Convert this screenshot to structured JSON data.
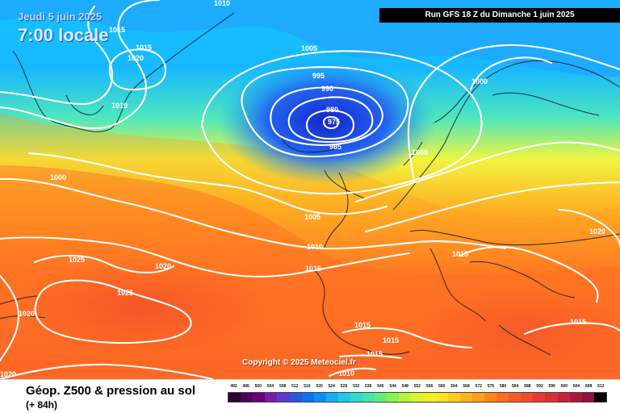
{
  "header": {
    "date_text": "Jeudi 5 juin 2025",
    "time_text": "7:00 locale",
    "run_text": "Run GFS 18 Z du Dimanche 1 juin 2025"
  },
  "map": {
    "copyright": "Copyright © 2025 Meteociel.fr",
    "isobar_labels": [
      "1010",
      "1015",
      "1015",
      "1020",
      "1010",
      "1005",
      "995",
      "990",
      "980",
      "975",
      "985",
      "1000",
      "1000",
      "1000",
      "1005",
      "1010",
      "1015",
      "1020",
      "1025",
      "1025",
      "1020",
      "1020",
      "1015",
      "1015",
      "1015",
      "1015",
      "1010",
      "1020",
      "1015"
    ]
  },
  "footer": {
    "title": "Géop. Z500 & pression au sol",
    "forecast_step": "(+ 84h)"
  },
  "legend": {
    "labels": [
      "492",
      "496",
      "500",
      "504",
      "508",
      "512",
      "516",
      "520",
      "524",
      "528",
      "532",
      "536",
      "540",
      "544",
      "548",
      "552",
      "556",
      "560",
      "564",
      "568",
      "572",
      "576",
      "580",
      "584",
      "588",
      "592",
      "596",
      "600",
      "604",
      "608",
      "612"
    ],
    "colors": [
      "#2d0032",
      "#4b005b",
      "#6a0078",
      "#7b1ca4",
      "#5d38c9",
      "#2a55de",
      "#0f71f0",
      "#0a8df5",
      "#16aef4",
      "#22c7e9",
      "#2dd9d0",
      "#41e5ac",
      "#62ee7a",
      "#89f252",
      "#b5f53b",
      "#d8f52f",
      "#f3ef28",
      "#ffe126",
      "#ffcb23",
      "#ffb520",
      "#ff9d1e",
      "#ff851d",
      "#ff6d1f",
      "#f85a24",
      "#f24a2a",
      "#e63c2f",
      "#d82f33",
      "#c52436",
      "#a91a38",
      "#8f1337",
      "#000000"
    ]
  }
}
